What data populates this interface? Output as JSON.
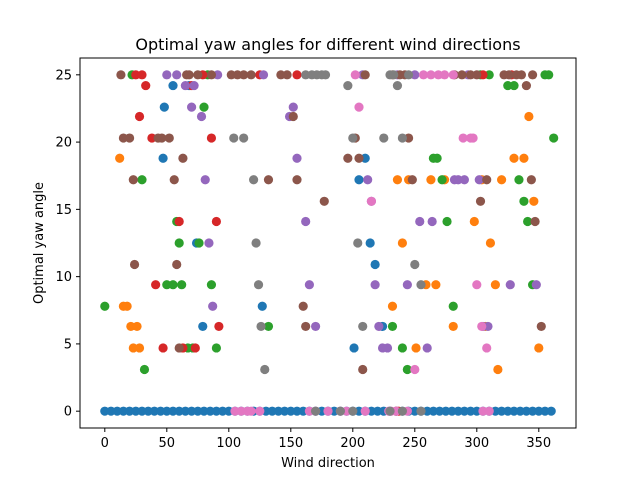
{
  "chart_data": {
    "type": "scatter",
    "title": "Optimal yaw angles for different wind directions",
    "xlabel": "Wind direction",
    "ylabel": "Optimal yaw angle",
    "xlim": [
      -20,
      380
    ],
    "ylim": [
      -1.25,
      26.25
    ],
    "xticks": [
      0,
      50,
      100,
      150,
      200,
      250,
      300,
      350
    ],
    "yticks": [
      0,
      5,
      10,
      15,
      20,
      25
    ],
    "grid": false,
    "legend": "none",
    "series": [
      {
        "color": "#1f77b4",
        "points": [
          [
            0,
            0
          ],
          [
            5,
            0
          ],
          [
            10,
            0
          ],
          [
            15,
            0
          ],
          [
            20,
            0
          ],
          [
            25,
            0
          ],
          [
            30,
            0
          ],
          [
            35,
            0
          ],
          [
            40,
            0
          ],
          [
            45,
            0
          ],
          [
            50,
            0
          ],
          [
            55,
            0
          ],
          [
            60,
            0
          ],
          [
            65,
            0
          ],
          [
            70,
            0
          ],
          [
            75,
            0
          ],
          [
            80,
            0
          ],
          [
            85,
            0
          ],
          [
            90,
            0
          ],
          [
            95,
            0
          ],
          [
            100,
            0
          ],
          [
            105,
            0
          ],
          [
            110,
            0
          ],
          [
            115,
            0
          ],
          [
            120,
            0
          ],
          [
            125,
            0
          ],
          [
            130,
            0
          ],
          [
            135,
            0
          ],
          [
            140,
            0
          ],
          [
            145,
            0
          ],
          [
            150,
            0
          ],
          [
            155,
            0
          ],
          [
            160,
            0
          ],
          [
            165,
            0
          ],
          [
            170,
            0
          ],
          [
            175,
            0
          ],
          [
            180,
            0
          ],
          [
            185,
            0
          ],
          [
            190,
            0
          ],
          [
            195,
            0
          ],
          [
            200,
            0
          ],
          [
            205,
            0
          ],
          [
            210,
            0
          ],
          [
            215,
            0
          ],
          [
            220,
            0
          ],
          [
            225,
            0
          ],
          [
            230,
            0
          ],
          [
            235,
            0
          ],
          [
            240,
            0
          ],
          [
            245,
            0
          ],
          [
            250,
            0
          ],
          [
            255,
            0
          ],
          [
            260,
            0
          ],
          [
            265,
            0
          ],
          [
            270,
            0
          ],
          [
            275,
            0
          ],
          [
            280,
            0
          ],
          [
            285,
            0
          ],
          [
            290,
            0
          ],
          [
            295,
            0
          ],
          [
            300,
            0
          ],
          [
            305,
            0
          ],
          [
            310,
            0
          ],
          [
            315,
            0
          ],
          [
            320,
            0
          ],
          [
            325,
            0
          ],
          [
            330,
            0
          ],
          [
            335,
            0
          ],
          [
            340,
            0
          ],
          [
            345,
            0
          ],
          [
            350,
            0
          ],
          [
            355,
            0
          ],
          [
            360,
            0
          ],
          [
            48,
            22.6
          ],
          [
            47,
            18.8
          ],
          [
            55,
            24.2
          ],
          [
            68,
            24.2
          ],
          [
            74,
            12.5
          ],
          [
            79,
            6.3
          ],
          [
            127,
            7.8
          ],
          [
            201,
            4.7
          ],
          [
            205,
            17.2
          ],
          [
            210,
            18.8
          ],
          [
            214,
            12.5
          ],
          [
            218,
            10.9
          ],
          [
            224,
            6.3
          ]
        ]
      },
      {
        "color": "#ff7f0e",
        "points": [
          [
            12,
            18.8
          ],
          [
            15,
            7.8
          ],
          [
            18,
            7.8
          ],
          [
            21,
            6.3
          ],
          [
            23,
            4.7
          ],
          [
            26,
            6.3
          ],
          [
            28,
            4.7
          ],
          [
            232,
            7.8
          ],
          [
            236,
            17.2
          ],
          [
            240,
            12.5
          ],
          [
            245,
            17.2
          ],
          [
            251,
            4.7
          ],
          [
            259,
            9.4
          ],
          [
            263,
            17.2
          ],
          [
            267,
            9.4
          ],
          [
            274,
            17.2
          ],
          [
            281,
            6.3
          ],
          [
            298,
            14.1
          ],
          [
            304,
            17.2
          ],
          [
            307,
            6.3
          ],
          [
            311,
            12.5
          ],
          [
            315,
            9.4
          ],
          [
            317,
            3.1
          ],
          [
            320,
            17.2
          ],
          [
            330,
            18.8
          ],
          [
            338,
            18.8
          ],
          [
            342,
            21.9
          ],
          [
            346,
            15.6
          ],
          [
            350,
            4.7
          ]
        ]
      },
      {
        "color": "#2ca02c",
        "points": [
          [
            0,
            7.8
          ],
          [
            22,
            25
          ],
          [
            30,
            17.2
          ],
          [
            32,
            3.1
          ],
          [
            50,
            9.4
          ],
          [
            55,
            9.4
          ],
          [
            58,
            14.1
          ],
          [
            60,
            12.5
          ],
          [
            62,
            9.4
          ],
          [
            67,
            4.7
          ],
          [
            71,
            4.7
          ],
          [
            76,
            12.5
          ],
          [
            80,
            22.6
          ],
          [
            83,
            25
          ],
          [
            86,
            9.4
          ],
          [
            90,
            4.7
          ],
          [
            132,
            6.3
          ],
          [
            232,
            6.3
          ],
          [
            240,
            4.7
          ],
          [
            244,
            3.1
          ],
          [
            265,
            18.8
          ],
          [
            268,
            18.8
          ],
          [
            272,
            17.2
          ],
          [
            276,
            14.1
          ],
          [
            281,
            7.8
          ],
          [
            303,
            25
          ],
          [
            310,
            25
          ],
          [
            325,
            24.2
          ],
          [
            330,
            24.2
          ],
          [
            334,
            17.2
          ],
          [
            338,
            15.6
          ],
          [
            341,
            14.1
          ],
          [
            345,
            9.4
          ],
          [
            355,
            25
          ],
          [
            358,
            25
          ],
          [
            362,
            20.3
          ]
        ]
      },
      {
        "color": "#d62728",
        "points": [
          [
            25,
            25
          ],
          [
            28,
            21.9
          ],
          [
            30,
            25
          ],
          [
            33,
            24.2
          ],
          [
            38,
            20.3
          ],
          [
            41,
            9.4
          ],
          [
            47,
            4.7
          ],
          [
            60,
            14.1
          ],
          [
            63,
            4.7
          ],
          [
            70,
            24.2
          ],
          [
            73,
            4.7
          ],
          [
            79,
            25
          ],
          [
            86,
            20.3
          ],
          [
            90,
            14.1
          ],
          [
            92,
            6.3
          ],
          [
            125,
            25
          ],
          [
            155,
            25
          ],
          [
            235,
            0
          ],
          [
            237,
            0
          ],
          [
            305,
            25
          ],
          [
            328,
            25
          ]
        ]
      },
      {
        "color": "#9467bd",
        "points": [
          [
            50,
            25
          ],
          [
            58,
            25
          ],
          [
            65,
            24.2
          ],
          [
            70,
            22.6
          ],
          [
            72,
            24.2
          ],
          [
            78,
            21.9
          ],
          [
            81,
            17.2
          ],
          [
            84,
            12.5
          ],
          [
            87,
            7.8
          ],
          [
            91,
            25
          ],
          [
            128,
            25
          ],
          [
            149,
            21.9
          ],
          [
            152,
            22.6
          ],
          [
            155,
            18.8
          ],
          [
            162,
            14.1
          ],
          [
            165,
            9.4
          ],
          [
            170,
            6.3
          ],
          [
            208,
            25
          ],
          [
            212,
            17.2
          ],
          [
            215,
            15.6
          ],
          [
            218,
            9.4
          ],
          [
            221,
            6.3
          ],
          [
            224,
            4.7
          ],
          [
            228,
            4.7
          ],
          [
            236,
            25
          ],
          [
            244,
            9.4
          ],
          [
            250,
            25
          ],
          [
            254,
            14.1
          ],
          [
            260,
            4.7
          ],
          [
            264,
            14.1
          ],
          [
            282,
            17.2
          ],
          [
            285,
            17.2
          ],
          [
            290,
            17.2
          ],
          [
            293,
            25
          ],
          [
            302,
            17.2
          ],
          [
            305,
            6.3
          ],
          [
            309,
            6.3
          ],
          [
            327,
            9.4
          ],
          [
            348,
            9.4
          ]
        ]
      },
      {
        "color": "#8c564b",
        "points": [
          [
            13,
            25
          ],
          [
            15,
            20.3
          ],
          [
            20,
            20.3
          ],
          [
            23,
            17.2
          ],
          [
            24,
            10.9
          ],
          [
            43,
            20.3
          ],
          [
            46,
            20.3
          ],
          [
            52,
            20.3
          ],
          [
            56,
            17.2
          ],
          [
            58,
            10.9
          ],
          [
            60,
            4.7
          ],
          [
            63,
            18.8
          ],
          [
            66,
            25
          ],
          [
            68,
            25
          ],
          [
            75,
            25
          ],
          [
            86,
            25
          ],
          [
            102,
            25
          ],
          [
            107,
            25
          ],
          [
            112,
            25
          ],
          [
            118,
            25
          ],
          [
            132,
            17.2
          ],
          [
            142,
            25
          ],
          [
            147,
            25
          ],
          [
            152,
            21.9
          ],
          [
            155,
            17.2
          ],
          [
            160,
            7.8
          ],
          [
            162,
            6.3
          ],
          [
            177,
            15.6
          ],
          [
            196,
            18.8
          ],
          [
            202,
            20.3
          ],
          [
            205,
            18.8
          ],
          [
            208,
            3.1
          ],
          [
            210,
            25
          ],
          [
            232,
            25
          ],
          [
            238,
            25
          ],
          [
            242,
            25
          ],
          [
            245,
            20.3
          ],
          [
            248,
            17.2
          ],
          [
            282,
            25
          ],
          [
            288,
            25
          ],
          [
            295,
            25
          ],
          [
            300,
            25
          ],
          [
            303,
            15.6
          ],
          [
            308,
            17.2
          ],
          [
            322,
            25
          ],
          [
            326,
            25
          ],
          [
            332,
            25
          ],
          [
            336,
            25
          ],
          [
            340,
            24.2
          ],
          [
            344,
            17.2
          ],
          [
            347,
            14.1
          ],
          [
            352,
            6.3
          ],
          [
            345,
            25
          ]
        ]
      },
      {
        "color": "#e377c2",
        "points": [
          [
            202,
            25
          ],
          [
            205,
            22.6
          ],
          [
            215,
            15.6
          ],
          [
            229,
            0
          ],
          [
            231,
            0
          ],
          [
            235,
            0
          ],
          [
            244,
            0
          ],
          [
            250,
            3.1
          ],
          [
            257,
            25
          ],
          [
            263,
            25
          ],
          [
            269,
            25
          ],
          [
            274,
            25
          ],
          [
            281,
            25
          ],
          [
            289,
            20.3
          ],
          [
            295,
            20.3
          ],
          [
            297,
            20.3
          ],
          [
            300,
            9.4
          ],
          [
            304,
            6.3
          ],
          [
            308,
            4.7
          ],
          [
            305,
            0
          ],
          [
            310,
            0
          ],
          [
            105,
            0
          ],
          [
            110,
            0
          ],
          [
            115,
            0
          ],
          [
            118,
            0
          ],
          [
            125,
            0
          ],
          [
            165,
            0
          ],
          [
            170,
            0
          ],
          [
            180,
            0
          ],
          [
            190,
            0
          ],
          [
            195,
            0
          ],
          [
            210,
            0
          ]
        ]
      },
      {
        "color": "#7f7f7f",
        "points": [
          [
            104,
            20.3
          ],
          [
            112,
            20.3
          ],
          [
            120,
            17.2
          ],
          [
            122,
            12.5
          ],
          [
            124,
            9.4
          ],
          [
            126,
            6.3
          ],
          [
            129,
            3.1
          ],
          [
            162,
            25
          ],
          [
            167,
            25
          ],
          [
            171,
            25
          ],
          [
            175,
            25
          ],
          [
            178,
            25
          ],
          [
            196,
            24.2
          ],
          [
            200,
            20.3
          ],
          [
            204,
            12.5
          ],
          [
            208,
            6.3
          ],
          [
            225,
            20.3
          ],
          [
            230,
            25
          ],
          [
            233,
            25
          ],
          [
            236,
            24.2
          ],
          [
            240,
            20.3
          ],
          [
            245,
            25
          ],
          [
            250,
            10.9
          ],
          [
            255,
            9.4
          ],
          [
            170,
            0
          ],
          [
            190,
            0
          ],
          [
            200,
            0
          ],
          [
            230,
            0
          ],
          [
            240,
            0
          ],
          [
            255,
            0
          ]
        ]
      },
      {
        "color": "#bcbd22",
        "points": []
      },
      {
        "color": "#17becf",
        "points": []
      }
    ]
  }
}
